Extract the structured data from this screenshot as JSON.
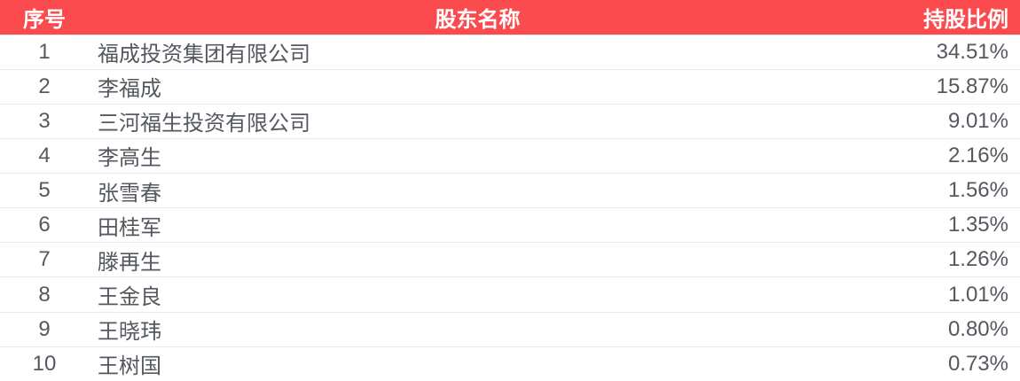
{
  "table": {
    "columns": [
      {
        "id": "index",
        "label": "序号"
      },
      {
        "id": "name",
        "label": "股东名称"
      },
      {
        "id": "ratio",
        "label": "持股比例"
      }
    ],
    "rows": [
      {
        "index": "1",
        "name": "福成投资集团有限公司",
        "ratio": "34.51%"
      },
      {
        "index": "2",
        "name": "李福成",
        "ratio": "15.87%"
      },
      {
        "index": "3",
        "name": "三河福生投资有限公司",
        "ratio": "9.01%"
      },
      {
        "index": "4",
        "name": "李高生",
        "ratio": "2.16%"
      },
      {
        "index": "5",
        "name": "张雪春",
        "ratio": "1.56%"
      },
      {
        "index": "6",
        "name": "田桂军",
        "ratio": "1.35%"
      },
      {
        "index": "7",
        "name": "滕再生",
        "ratio": "1.26%"
      },
      {
        "index": "8",
        "name": "王金良",
        "ratio": "1.01%"
      },
      {
        "index": "9",
        "name": "王晓玮",
        "ratio": "0.80%"
      },
      {
        "index": "10",
        "name": "王树国",
        "ratio": "0.73%"
      }
    ],
    "colors": {
      "header_bg": "#fb4b4e",
      "header_text": "#ffffff",
      "row_text": "#54585f",
      "divider": "#e9e9f2",
      "row_bg": "#ffffff"
    }
  }
}
